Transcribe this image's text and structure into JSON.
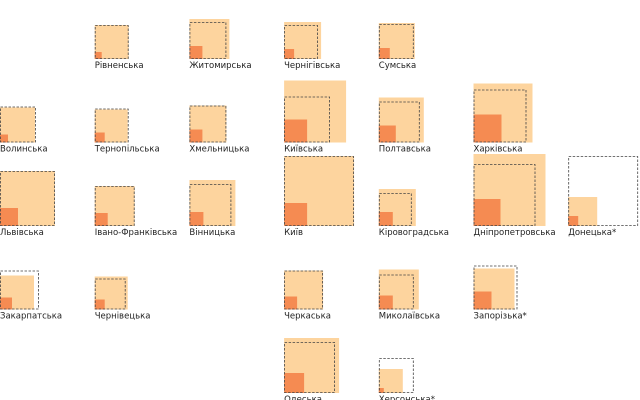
{
  "chart_data": {
    "type": "other",
    "colors": {
      "outer": "#FDD49E",
      "inner": "#F58B52",
      "dashed": "#444444"
    },
    "regions": [
      {
        "name": "Рівненська",
        "col": 1,
        "row": 0,
        "outer": 34,
        "inner": 7,
        "dashed": 34
      },
      {
        "name": "Житомирська",
        "col": 2,
        "row": 0,
        "outer": 40,
        "inner": 13,
        "dashed": 37
      },
      {
        "name": "Чернігівська",
        "col": 3,
        "row": 0,
        "outer": 37,
        "inner": 10,
        "dashed": 34
      },
      {
        "name": "Сумська",
        "col": 4,
        "row": 0,
        "outer": 36,
        "inner": 11,
        "dashed": 35
      },
      {
        "name": "Волинська",
        "col": 0,
        "row": 1,
        "outer": 35,
        "inner": 8,
        "dashed": 36
      },
      {
        "name": "Тернопільська",
        "col": 1,
        "row": 1,
        "outer": 33,
        "inner": 10,
        "dashed": 34
      },
      {
        "name": "Хмельницька",
        "col": 2,
        "row": 1,
        "outer": 37,
        "inner": 13,
        "dashed": 37
      },
      {
        "name": "Київська",
        "col": 3,
        "row": 1,
        "outer": 62,
        "inner": 23,
        "dashed": 46
      },
      {
        "name": "Полтавська",
        "col": 4,
        "row": 1,
        "outer": 45,
        "inner": 17,
        "dashed": 41
      },
      {
        "name": "Харківська",
        "col": 5,
        "row": 1,
        "outer": 59,
        "inner": 28,
        "dashed": 53
      },
      {
        "name": "Львівська",
        "col": 0,
        "row": 2,
        "outer": 55,
        "inner": 18,
        "dashed": 55
      },
      {
        "name": "Івано-Франківська",
        "col": 1,
        "row": 2,
        "outer": 40,
        "inner": 13,
        "dashed": 40
      },
      {
        "name": "Вінницька",
        "col": 2,
        "row": 2,
        "outer": 46,
        "inner": 14,
        "dashed": 42
      },
      {
        "name": "Київ",
        "col": 3,
        "row": 2,
        "outer": 70,
        "inner": 23,
        "dashed": 70
      },
      {
        "name": "Кіровоградська",
        "col": 4,
        "row": 2,
        "outer": 37,
        "inner": 14,
        "dashed": 33
      },
      {
        "name": "Дніпропетровська",
        "col": 5,
        "row": 2,
        "outer": 72,
        "inner": 27,
        "dashed": 62
      },
      {
        "name": "Донецька*",
        "col": 6,
        "row": 2,
        "outer": 29,
        "inner": 10,
        "dashed": 70
      },
      {
        "name": "Закарпатська",
        "col": 0,
        "row": 3,
        "outer": 34,
        "inner": 12,
        "dashed": 39
      },
      {
        "name": "Чернівецька",
        "col": 1,
        "row": 3,
        "outer": 33,
        "inner": 10,
        "dashed": 31
      },
      {
        "name": "Черкаська",
        "col": 3,
        "row": 3,
        "outer": 39,
        "inner": 13,
        "dashed": 39
      },
      {
        "name": "Миколаївська",
        "col": 4,
        "row": 3,
        "outer": 40,
        "inner": 14,
        "dashed": 35
      },
      {
        "name": "Запорізька*",
        "col": 5,
        "row": 3,
        "outer": 41,
        "inner": 18,
        "dashed": 44
      },
      {
        "name": "Одеська",
        "col": 3,
        "row": 4,
        "outer": 55,
        "inner": 20,
        "dashed": 51
      },
      {
        "name": "Херсонська*",
        "col": 4,
        "row": 4,
        "outer": 24,
        "inner": 5,
        "dashed": 35
      }
    ]
  }
}
